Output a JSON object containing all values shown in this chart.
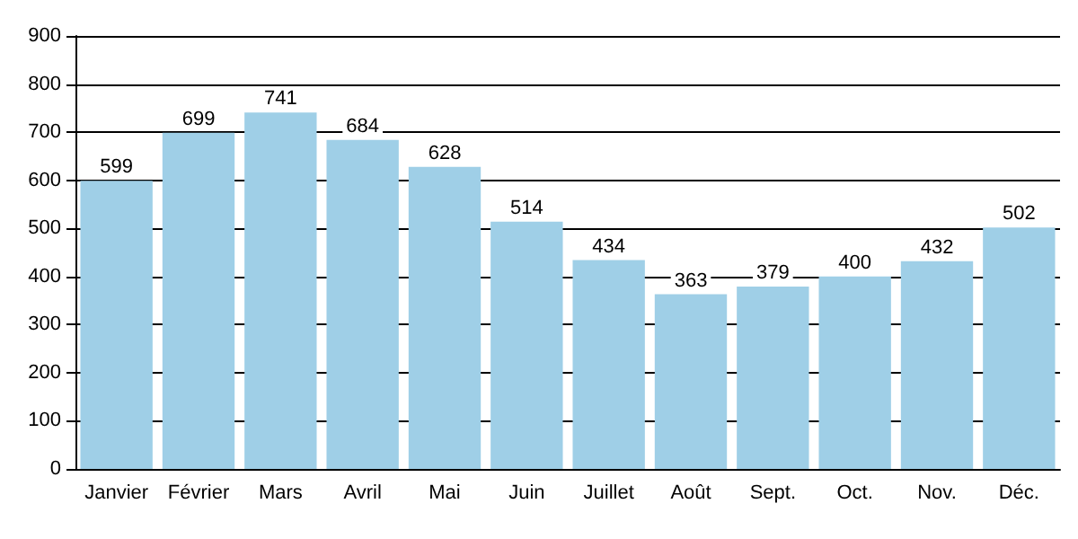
{
  "chart_data": {
    "type": "bar",
    "categories": [
      "Janvier",
      "Février",
      "Mars",
      "Avril",
      "Mai",
      "Juin",
      "Juillet",
      "Août",
      "Sept.",
      "Oct.",
      "Nov.",
      "Déc."
    ],
    "values": [
      599,
      699,
      741,
      684,
      628,
      514,
      434,
      363,
      379,
      400,
      432,
      502
    ],
    "color": "#9fcfe7",
    "ylim": [
      0,
      900
    ],
    "yticks": [
      0,
      100,
      200,
      300,
      400,
      500,
      600,
      700,
      800,
      900
    ],
    "grid": "y",
    "data_labels": true
  }
}
